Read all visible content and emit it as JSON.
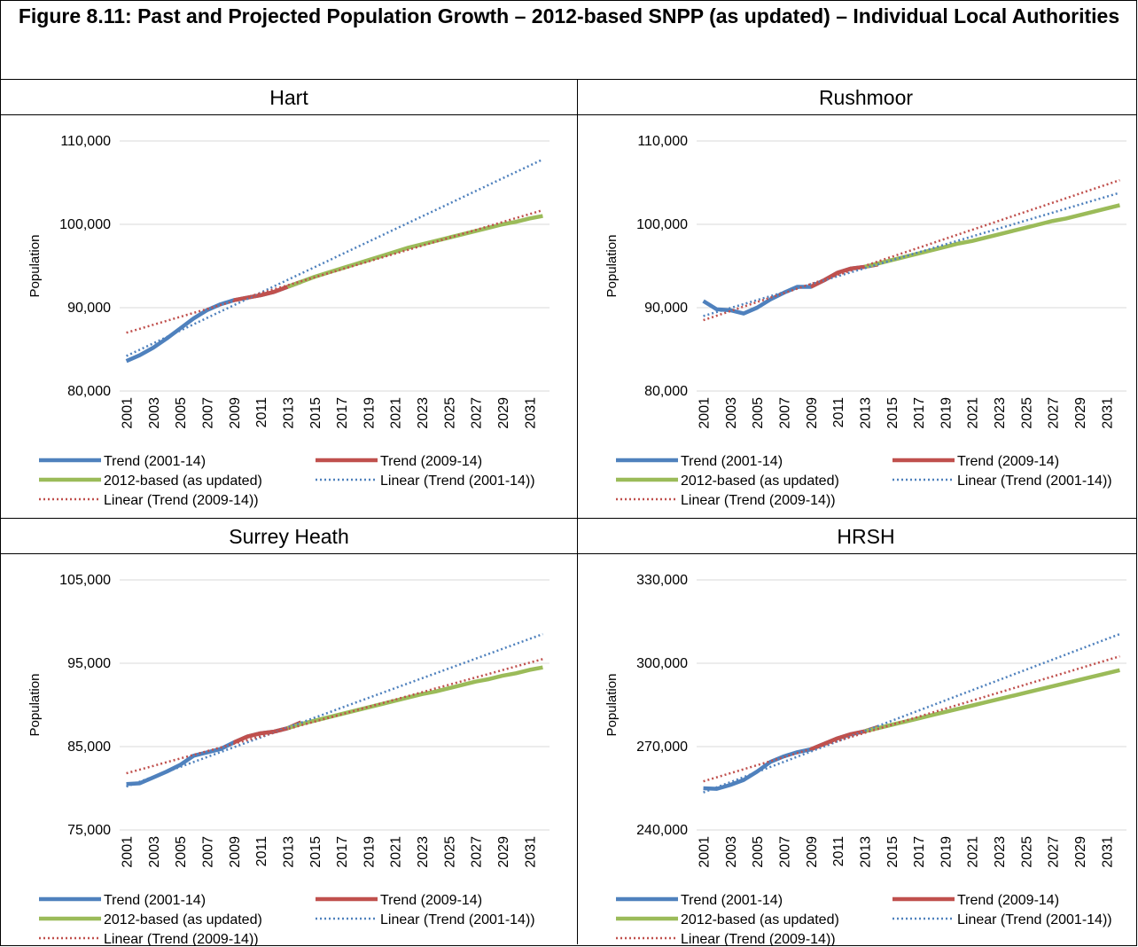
{
  "title": "Figure 8.11: Past and Projected Population Growth – 2012-based SNPP (as updated) – Individual Local Authorities",
  "chart_data": [
    {
      "type": "line",
      "title": "Hart",
      "ylabel": "Population",
      "categories": [
        "2001",
        null,
        "2003",
        null,
        "2005",
        null,
        "2007",
        null,
        "2009",
        null,
        "2011",
        null,
        "2013",
        null,
        "2015",
        null,
        "2017",
        null,
        "2019",
        null,
        "2021",
        null,
        "2023",
        null,
        "2025",
        null,
        "2027",
        null,
        "2029",
        null,
        "2031",
        null
      ],
      "ylim": [
        80000,
        110000
      ],
      "yticks": [
        {
          "value": 80000,
          "label": "80,000"
        },
        {
          "value": 90000,
          "label": "90,000"
        },
        {
          "value": 100000,
          "label": "100,000"
        },
        {
          "value": 110000,
          "label": "110,000"
        }
      ],
      "grid": true,
      "series": [
        {
          "name": "Trend (2001-14)",
          "color": "#4f81bd",
          "line_style": "solid",
          "values": [
            83600,
            84300,
            85200,
            86300,
            87500,
            88700,
            89700,
            90400,
            90900,
            91200,
            91500,
            91900,
            92500,
            93100,
            null,
            null,
            null,
            null,
            null,
            null,
            null,
            null,
            null,
            null,
            null,
            null,
            null,
            null,
            null,
            null,
            null,
            null
          ]
        },
        {
          "name": "Trend (2009-14)",
          "color": "#c0504d",
          "line_style": "solid",
          "values": [
            null,
            null,
            null,
            null,
            null,
            null,
            null,
            null,
            90900,
            91200,
            91500,
            91900,
            92500,
            93100,
            null,
            null,
            null,
            null,
            null,
            null,
            null,
            null,
            null,
            null,
            null,
            null,
            null,
            null,
            null,
            null,
            null,
            null
          ]
        },
        {
          "name": "2012-based (as updated)",
          "color": "#9bbb59",
          "line_style": "solid",
          "values": [
            null,
            null,
            null,
            null,
            null,
            null,
            null,
            null,
            null,
            null,
            null,
            null,
            92500,
            93100,
            93700,
            94200,
            94700,
            95200,
            95700,
            96200,
            96700,
            97200,
            97600,
            98000,
            98400,
            98800,
            99200,
            99600,
            100000,
            100300,
            100700,
            101000
          ]
        },
        {
          "name": "Linear (Trend (2001-14))",
          "color": "#4f81bd",
          "line_style": "dotted",
          "values": [
            84200,
            84960,
            85720,
            86480,
            87240,
            88000,
            88770,
            89530,
            90290,
            91050,
            91810,
            92570,
            93330,
            94090,
            94850,
            95610,
            96380,
            97140,
            97900,
            98660,
            99420,
            100180,
            100940,
            101700,
            102460,
            103220,
            103990,
            104750,
            105510,
            106270,
            107030,
            107790
          ]
        },
        {
          "name": "Linear (Trend (2009-14))",
          "color": "#c0504d",
          "line_style": "dotted",
          "values": [
            87000,
            87470,
            87950,
            88420,
            88900,
            89370,
            89840,
            90320,
            90790,
            91270,
            91740,
            92210,
            92690,
            93160,
            93640,
            94110,
            94580,
            95060,
            95530,
            96010,
            96480,
            96950,
            97430,
            97900,
            98380,
            98850,
            99320,
            99800,
            100270,
            100750,
            101220,
            101700
          ]
        }
      ]
    },
    {
      "type": "line",
      "title": "Rushmoor",
      "ylabel": "Population",
      "categories": [
        "2001",
        null,
        "2003",
        null,
        "2005",
        null,
        "2007",
        null,
        "2009",
        null,
        "2011",
        null,
        "2013",
        null,
        "2015",
        null,
        "2017",
        null,
        "2019",
        null,
        "2021",
        null,
        "2023",
        null,
        "2025",
        null,
        "2027",
        null,
        "2029",
        null,
        "2031",
        null
      ],
      "ylim": [
        80000,
        110000
      ],
      "yticks": [
        {
          "value": 80000,
          "label": "80,000"
        },
        {
          "value": 90000,
          "label": "90,000"
        },
        {
          "value": 100000,
          "label": "100,000"
        },
        {
          "value": 110000,
          "label": "110,000"
        }
      ],
      "grid": true,
      "series": [
        {
          "name": "Trend (2001-14)",
          "color": "#4f81bd",
          "line_style": "solid",
          "values": [
            90800,
            89800,
            89700,
            89300,
            90000,
            91000,
            91800,
            92500,
            92500,
            93300,
            94200,
            94700,
            94900,
            95200,
            null,
            null,
            null,
            null,
            null,
            null,
            null,
            null,
            null,
            null,
            null,
            null,
            null,
            null,
            null,
            null,
            null,
            null
          ]
        },
        {
          "name": "Trend (2009-14)",
          "color": "#c0504d",
          "line_style": "solid",
          "values": [
            null,
            null,
            null,
            null,
            null,
            null,
            null,
            null,
            92500,
            93300,
            94200,
            94700,
            94900,
            95200,
            null,
            null,
            null,
            null,
            null,
            null,
            null,
            null,
            null,
            null,
            null,
            null,
            null,
            null,
            null,
            null,
            null,
            null
          ]
        },
        {
          "name": "2012-based (as updated)",
          "color": "#9bbb59",
          "line_style": "solid",
          "values": [
            null,
            null,
            null,
            null,
            null,
            null,
            null,
            null,
            null,
            null,
            null,
            null,
            94900,
            95300,
            95700,
            96100,
            96500,
            96900,
            97300,
            97700,
            98000,
            98400,
            98800,
            99200,
            99600,
            100000,
            100400,
            100700,
            101100,
            101500,
            101900,
            102300
          ]
        },
        {
          "name": "Linear (Trend (2001-14))",
          "color": "#4f81bd",
          "line_style": "dotted",
          "values": [
            89000,
            89480,
            89950,
            90430,
            90910,
            91390,
            91860,
            92340,
            92820,
            93290,
            93770,
            94250,
            94730,
            95200,
            95680,
            96160,
            96630,
            97110,
            97590,
            98060,
            98540,
            99020,
            99500,
            99970,
            100450,
            100930,
            101400,
            101880,
            102360,
            102840,
            103310,
            103790
          ]
        },
        {
          "name": "Linear (Trend (2009-14))",
          "color": "#c0504d",
          "line_style": "dotted",
          "values": [
            88500,
            89040,
            89580,
            90130,
            90670,
            91210,
            91750,
            92290,
            92840,
            93380,
            93920,
            94460,
            95000,
            95550,
            96090,
            96630,
            97170,
            97710,
            98260,
            98800,
            99340,
            99880,
            100420,
            100970,
            101510,
            102050,
            102590,
            103130,
            103680,
            104220,
            104760,
            105300
          ]
        }
      ]
    },
    {
      "type": "line",
      "title": "Surrey Heath",
      "ylabel": "Population",
      "categories": [
        "2001",
        null,
        "2003",
        null,
        "2005",
        null,
        "2007",
        null,
        "2009",
        null,
        "2011",
        null,
        "2013",
        null,
        "2015",
        null,
        "2017",
        null,
        "2019",
        null,
        "2021",
        null,
        "2023",
        null,
        "2025",
        null,
        "2027",
        null,
        "2029",
        null,
        "2031",
        null
      ],
      "ylim": [
        75000,
        105000
      ],
      "yticks": [
        {
          "value": 75000,
          "label": "75,000"
        },
        {
          "value": 85000,
          "label": "85,000"
        },
        {
          "value": 95000,
          "label": "95,000"
        },
        {
          "value": 105000,
          "label": "105,000"
        }
      ],
      "grid": true,
      "series": [
        {
          "name": "Trend (2001-14)",
          "color": "#4f81bd",
          "line_style": "solid",
          "values": [
            80500,
            80600,
            81300,
            82000,
            82800,
            83900,
            84300,
            84700,
            85500,
            86200,
            86600,
            86800,
            87200,
            87900,
            null,
            null,
            null,
            null,
            null,
            null,
            null,
            null,
            null,
            null,
            null,
            null,
            null,
            null,
            null,
            null,
            null,
            null
          ]
        },
        {
          "name": "Trend (2009-14)",
          "color": "#c0504d",
          "line_style": "solid",
          "values": [
            null,
            null,
            null,
            null,
            null,
            null,
            null,
            null,
            85500,
            86200,
            86600,
            86800,
            87200,
            87900,
            null,
            null,
            null,
            null,
            null,
            null,
            null,
            null,
            null,
            null,
            null,
            null,
            null,
            null,
            null,
            null,
            null,
            null
          ]
        },
        {
          "name": "2012-based (as updated)",
          "color": "#9bbb59",
          "line_style": "solid",
          "values": [
            null,
            null,
            null,
            null,
            null,
            null,
            null,
            null,
            null,
            null,
            null,
            null,
            87200,
            87700,
            88100,
            88500,
            88900,
            89300,
            89700,
            90100,
            90500,
            90900,
            91300,
            91600,
            92000,
            92400,
            92800,
            93100,
            93500,
            93800,
            94200,
            94500
          ]
        },
        {
          "name": "Linear (Trend (2001-14))",
          "color": "#4f81bd",
          "line_style": "dotted",
          "values": [
            80200,
            80790,
            81380,
            81970,
            82560,
            83150,
            83740,
            84330,
            84920,
            85510,
            86100,
            86690,
            87280,
            87870,
            88460,
            89050,
            89650,
            90240,
            90830,
            91420,
            92010,
            92600,
            93190,
            93780,
            94370,
            94960,
            95550,
            96140,
            96730,
            97320,
            97910,
            98500
          ]
        },
        {
          "name": "Linear (Trend (2009-14))",
          "color": "#c0504d",
          "line_style": "dotted",
          "values": [
            81800,
            82240,
            82680,
            83130,
            83570,
            84010,
            84450,
            84890,
            85340,
            85780,
            86220,
            86660,
            87100,
            87550,
            87990,
            88430,
            88870,
            89310,
            89760,
            90200,
            90640,
            91080,
            91520,
            91970,
            92410,
            92850,
            93290,
            93730,
            94180,
            94620,
            95060,
            95500
          ]
        }
      ]
    },
    {
      "type": "line",
      "title": "HRSH",
      "ylabel": "Population",
      "categories": [
        "2001",
        null,
        "2003",
        null,
        "2005",
        null,
        "2007",
        null,
        "2009",
        null,
        "2011",
        null,
        "2013",
        null,
        "2015",
        null,
        "2017",
        null,
        "2019",
        null,
        "2021",
        null,
        "2023",
        null,
        "2025",
        null,
        "2027",
        null,
        "2029",
        null,
        "2031",
        null
      ],
      "ylim": [
        240000,
        330000
      ],
      "yticks": [
        {
          "value": 240000,
          "label": "240,000"
        },
        {
          "value": 270000,
          "label": "270,000"
        },
        {
          "value": 300000,
          "label": "300,000"
        },
        {
          "value": 330000,
          "label": "330,000"
        }
      ],
      "grid": true,
      "series": [
        {
          "name": "Trend (2001-14)",
          "color": "#4f81bd",
          "line_style": "solid",
          "values": [
            255000,
            254800,
            256200,
            258000,
            261000,
            264500,
            266500,
            268000,
            269000,
            271000,
            273000,
            274500,
            275500,
            277000,
            null,
            null,
            null,
            null,
            null,
            null,
            null,
            null,
            null,
            null,
            null,
            null,
            null,
            null,
            null,
            null,
            null,
            null
          ]
        },
        {
          "name": "Trend (2009-14)",
          "color": "#c0504d",
          "line_style": "solid",
          "values": [
            null,
            null,
            null,
            null,
            null,
            null,
            null,
            null,
            269000,
            271000,
            273000,
            274500,
            275500,
            277000,
            null,
            null,
            null,
            null,
            null,
            null,
            null,
            null,
            null,
            null,
            null,
            null,
            null,
            null,
            null,
            null,
            null,
            null
          ]
        },
        {
          "name": "2012-based (as updated)",
          "color": "#9bbb59",
          "line_style": "solid",
          "values": [
            null,
            null,
            null,
            null,
            null,
            null,
            null,
            null,
            null,
            null,
            null,
            null,
            275500,
            276660,
            277820,
            278970,
            280130,
            281290,
            282450,
            283610,
            284760,
            285920,
            287080,
            288240,
            289400,
            290550,
            291710,
            292870,
            294030,
            295190,
            296340,
            297500
          ]
        },
        {
          "name": "Linear (Trend (2001-14))",
          "color": "#4f81bd",
          "line_style": "dotted",
          "values": [
            253500,
            255340,
            257180,
            259020,
            260860,
            262700,
            264530,
            266370,
            268210,
            270050,
            271890,
            273730,
            275570,
            277410,
            279250,
            281090,
            282920,
            284760,
            286600,
            288440,
            290280,
            292120,
            293960,
            295800,
            297640,
            299480,
            301310,
            303150,
            304990,
            306830,
            308670,
            310500
          ]
        },
        {
          "name": "Linear (Trend (2009-14))",
          "color": "#c0504d",
          "line_style": "dotted",
          "values": [
            257500,
            258950,
            260400,
            261850,
            263310,
            264760,
            266210,
            267660,
            269110,
            270560,
            272020,
            273470,
            274920,
            276370,
            277820,
            279270,
            280730,
            282180,
            283630,
            285080,
            286530,
            287980,
            289440,
            290890,
            292340,
            293790,
            295240,
            296690,
            298150,
            299600,
            301050,
            302500
          ]
        }
      ]
    }
  ]
}
